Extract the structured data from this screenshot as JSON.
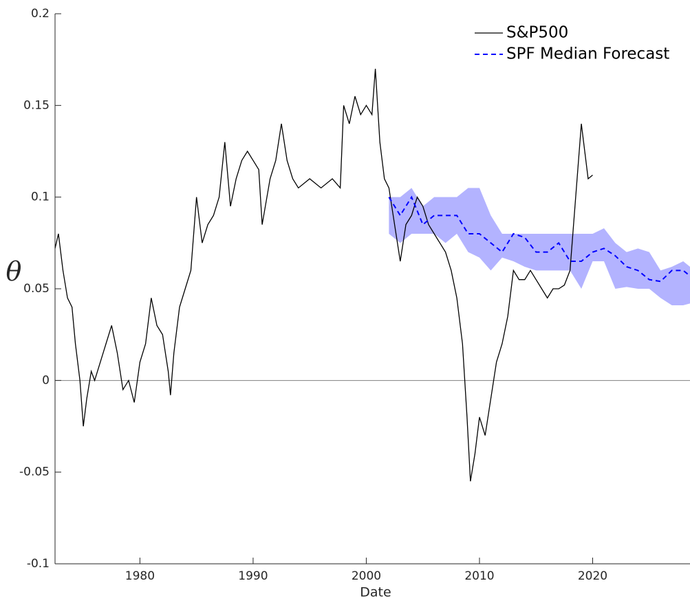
{
  "chart_data": {
    "type": "line",
    "xlabel": "Date",
    "ylabel": "θ",
    "xlim": [
      1972.5,
      2028.6
    ],
    "ylim": [
      -0.1,
      0.2
    ],
    "xticks": [
      1980,
      1990,
      2000,
      2010,
      2020
    ],
    "yticks": [
      -0.1,
      -0.05,
      0,
      0.05,
      0.1,
      0.15,
      0.2
    ],
    "zero_line": true,
    "legend": "northeast",
    "series": [
      {
        "name": "S&P500",
        "color": "#000000",
        "dash": "solid",
        "x": [
          1972.5,
          1972.8,
          1973.2,
          1973.6,
          1974.0,
          1974.3,
          1974.7,
          1975.0,
          1975.3,
          1975.7,
          1976.0,
          1976.5,
          1977.0,
          1977.5,
          1978.0,
          1978.5,
          1979.0,
          1979.5,
          1980.0,
          1980.5,
          1981.0,
          1981.5,
          1982.0,
          1982.5,
          1982.7,
          1983.0,
          1983.5,
          1984.0,
          1984.5,
          1985.0,
          1985.5,
          1986.0,
          1986.5,
          1987.0,
          1987.5,
          1988.0,
          1988.5,
          1989.0,
          1989.5,
          1990.0,
          1990.5,
          1990.8,
          1991.5,
          1992.0,
          1992.5,
          1993.0,
          1993.5,
          1994.0,
          1995.0,
          1996.0,
          1997.0,
          1997.7,
          1998.0,
          1998.5,
          1999.0,
          1999.5,
          2000.0,
          2000.5,
          2000.8,
          2001.2,
          2001.6,
          2002.0,
          2002.5,
          2003.0,
          2003.5,
          2004.0,
          2004.5,
          2005.0,
          2005.5,
          2006.0,
          2006.5,
          2007.0,
          2007.5,
          2008.0,
          2008.5,
          2008.9,
          2009.2,
          2009.6,
          2010.0,
          2010.5,
          2011.0,
          2011.5,
          2012.0,
          2012.5,
          2013.0,
          2013.5,
          2014.0,
          2014.5,
          2015.0,
          2015.5,
          2016.0,
          2016.5,
          2017.0,
          2017.5,
          2018.0,
          2018.5,
          2019.0,
          2019.3,
          2019.6,
          2020.0
        ],
        "values": [
          0.072,
          0.08,
          0.06,
          0.045,
          0.04,
          0.02,
          0.0,
          -0.025,
          -0.01,
          0.005,
          0.0,
          0.01,
          0.02,
          0.03,
          0.015,
          -0.005,
          0.0,
          -0.012,
          0.01,
          0.02,
          0.045,
          0.03,
          0.025,
          0.005,
          -0.008,
          0.015,
          0.04,
          0.05,
          0.06,
          0.1,
          0.075,
          0.085,
          0.09,
          0.1,
          0.13,
          0.095,
          0.11,
          0.12,
          0.125,
          0.12,
          0.115,
          0.085,
          0.11,
          0.12,
          0.14,
          0.12,
          0.11,
          0.105,
          0.11,
          0.105,
          0.11,
          0.105,
          0.15,
          0.14,
          0.155,
          0.145,
          0.15,
          0.145,
          0.17,
          0.13,
          0.11,
          0.105,
          0.085,
          0.065,
          0.085,
          0.09,
          0.1,
          0.095,
          0.085,
          0.08,
          0.075,
          0.07,
          0.06,
          0.045,
          0.02,
          -0.02,
          -0.055,
          -0.04,
          -0.02,
          -0.03,
          -0.01,
          0.01,
          0.02,
          0.035,
          0.06,
          0.055,
          0.055,
          0.06,
          0.055,
          0.05,
          0.045,
          0.05,
          0.05,
          0.052,
          0.06,
          0.1,
          0.14,
          0.125,
          0.11,
          0.112
        ]
      },
      {
        "name": "SPF Median Forecast",
        "color": "#0000ff",
        "dash": "dashed",
        "x": [
          2002,
          2003,
          2004,
          2005,
          2006,
          2007,
          2008,
          2009,
          2010,
          2011,
          2012,
          2013,
          2014,
          2015,
          2016,
          2017,
          2018,
          2019,
          2020,
          2021,
          2022,
          2023,
          2024,
          2025,
          2026,
          2027,
          2028,
          2028.6
        ],
        "values": [
          0.1,
          0.09,
          0.1,
          0.085,
          0.09,
          0.09,
          0.09,
          0.08,
          0.08,
          0.075,
          0.07,
          0.08,
          0.078,
          0.07,
          0.07,
          0.075,
          0.065,
          0.065,
          0.07,
          0.072,
          0.068,
          0.062,
          0.06,
          0.055,
          0.054,
          0.06,
          0.06,
          0.057
        ]
      }
    ],
    "band": {
      "color": "#b3b3ff",
      "x": [
        2002,
        2003,
        2004,
        2005,
        2006,
        2007,
        2008,
        2009,
        2010,
        2011,
        2012,
        2013,
        2014,
        2015,
        2016,
        2017,
        2018,
        2019,
        2020,
        2021,
        2022,
        2023,
        2024,
        2025,
        2026,
        2027,
        2028,
        2028.6
      ],
      "upper": [
        0.1,
        0.1,
        0.105,
        0.095,
        0.1,
        0.1,
        0.1,
        0.105,
        0.105,
        0.09,
        0.08,
        0.08,
        0.08,
        0.08,
        0.08,
        0.08,
        0.08,
        0.08,
        0.08,
        0.083,
        0.075,
        0.07,
        0.072,
        0.07,
        0.06,
        0.062,
        0.065,
        0.062
      ],
      "lower": [
        0.08,
        0.075,
        0.08,
        0.08,
        0.08,
        0.075,
        0.08,
        0.07,
        0.067,
        0.06,
        0.067,
        0.065,
        0.062,
        0.06,
        0.06,
        0.06,
        0.06,
        0.05,
        0.065,
        0.065,
        0.05,
        0.051,
        0.05,
        0.05,
        0.045,
        0.041,
        0.041,
        0.042
      ]
    }
  }
}
